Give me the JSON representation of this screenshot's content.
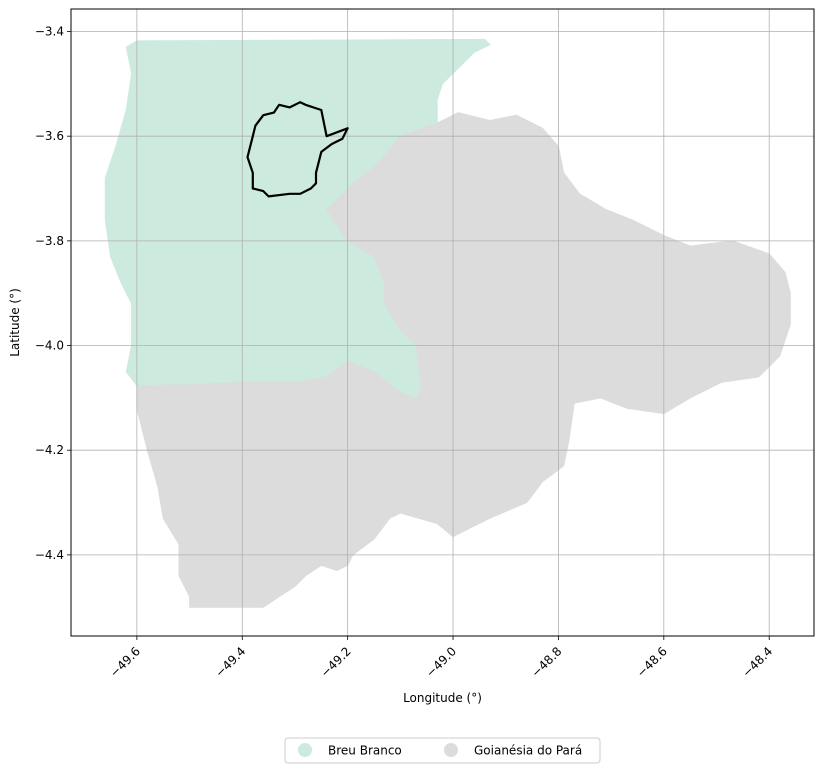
{
  "chart_data": {
    "type": "map",
    "xlabel": "Longitude (°)",
    "ylabel": "Latitude (°)",
    "xlim": [
      -49.725,
      -48.315
    ],
    "ylim": [
      -4.555,
      -3.357
    ],
    "x_ticks": [
      {
        "value": -49.6,
        "label": "−49.6"
      },
      {
        "value": -49.4,
        "label": "−49.4"
      },
      {
        "value": -49.2,
        "label": "−49.2"
      },
      {
        "value": -49.0,
        "label": "−49.0"
      },
      {
        "value": -48.8,
        "label": "−48.8"
      },
      {
        "value": -48.6,
        "label": "−48.6"
      },
      {
        "value": -48.4,
        "label": "−48.4"
      }
    ],
    "y_ticks": [
      {
        "value": -3.4,
        "label": "−3.4"
      },
      {
        "value": -3.6,
        "label": "−3.6"
      },
      {
        "value": -3.8,
        "label": "−3.8"
      },
      {
        "value": -4.0,
        "label": "−4.0"
      },
      {
        "value": -4.2,
        "label": "−4.2"
      },
      {
        "value": -4.4,
        "label": "−4.4"
      }
    ],
    "grid": true,
    "legend_position": "bottom-center",
    "series": [
      {
        "name": "Breu Branco",
        "color": "#cdeade",
        "outline": [
          [
            -49.6,
            -3.418
          ],
          [
            -48.94,
            -3.415
          ],
          [
            -48.93,
            -3.425
          ],
          [
            -48.96,
            -3.44
          ],
          [
            -49.0,
            -3.48
          ],
          [
            -49.02,
            -3.5
          ],
          [
            -49.03,
            -3.53
          ],
          [
            -49.03,
            -3.575
          ],
          [
            -49.1,
            -3.6
          ],
          [
            -49.14,
            -3.65
          ],
          [
            -49.2,
            -3.7
          ],
          [
            -49.24,
            -3.74
          ],
          [
            -49.22,
            -3.77
          ],
          [
            -49.2,
            -3.8
          ],
          [
            -49.15,
            -3.83
          ],
          [
            -49.13,
            -3.88
          ],
          [
            -49.13,
            -3.92
          ],
          [
            -49.1,
            -3.97
          ],
          [
            -49.07,
            -4.0
          ],
          [
            -49.06,
            -4.08
          ],
          [
            -49.07,
            -4.1
          ],
          [
            -49.1,
            -4.09
          ],
          [
            -49.15,
            -4.05
          ],
          [
            -49.2,
            -4.03
          ],
          [
            -49.24,
            -4.06
          ],
          [
            -49.3,
            -4.07
          ],
          [
            -49.4,
            -4.07
          ],
          [
            -49.5,
            -4.075
          ],
          [
            -49.6,
            -4.077
          ],
          [
            -49.62,
            -4.05
          ],
          [
            -49.61,
            -4.0
          ],
          [
            -49.61,
            -3.92
          ],
          [
            -49.63,
            -3.88
          ],
          [
            -49.65,
            -3.83
          ],
          [
            -49.66,
            -3.76
          ],
          [
            -49.66,
            -3.68
          ],
          [
            -49.64,
            -3.62
          ],
          [
            -49.62,
            -3.55
          ],
          [
            -49.61,
            -3.48
          ],
          [
            -49.62,
            -3.43
          ]
        ]
      },
      {
        "name": "Goianésia do Pará",
        "color": "#dcdcdc",
        "outline": [
          [
            -49.03,
            -3.575
          ],
          [
            -48.99,
            -3.555
          ],
          [
            -48.93,
            -3.57
          ],
          [
            -48.88,
            -3.56
          ],
          [
            -48.83,
            -3.585
          ],
          [
            -48.8,
            -3.62
          ],
          [
            -48.79,
            -3.67
          ],
          [
            -48.76,
            -3.71
          ],
          [
            -48.71,
            -3.74
          ],
          [
            -48.66,
            -3.76
          ],
          [
            -48.6,
            -3.79
          ],
          [
            -48.55,
            -3.81
          ],
          [
            -48.47,
            -3.8
          ],
          [
            -48.4,
            -3.825
          ],
          [
            -48.37,
            -3.86
          ],
          [
            -48.36,
            -3.9
          ],
          [
            -48.36,
            -3.96
          ],
          [
            -48.38,
            -4.02
          ],
          [
            -48.42,
            -4.06
          ],
          [
            -48.49,
            -4.07
          ],
          [
            -48.55,
            -4.1
          ],
          [
            -48.6,
            -4.13
          ],
          [
            -48.67,
            -4.12
          ],
          [
            -48.72,
            -4.1
          ],
          [
            -48.77,
            -4.11
          ],
          [
            -48.78,
            -4.18
          ],
          [
            -48.79,
            -4.23
          ],
          [
            -48.83,
            -4.26
          ],
          [
            -48.86,
            -4.3
          ],
          [
            -48.93,
            -4.33
          ],
          [
            -48.97,
            -4.35
          ],
          [
            -49.0,
            -4.365
          ],
          [
            -49.03,
            -4.34
          ],
          [
            -49.1,
            -4.32
          ],
          [
            -49.12,
            -4.33
          ],
          [
            -49.15,
            -4.37
          ],
          [
            -49.19,
            -4.4
          ],
          [
            -49.2,
            -4.42
          ],
          [
            -49.22,
            -4.43
          ],
          [
            -49.25,
            -4.42
          ],
          [
            -49.28,
            -4.44
          ],
          [
            -49.3,
            -4.46
          ],
          [
            -49.33,
            -4.48
          ],
          [
            -49.36,
            -4.5
          ],
          [
            -49.5,
            -4.5
          ],
          [
            -49.5,
            -4.48
          ],
          [
            -49.52,
            -4.44
          ],
          [
            -49.52,
            -4.38
          ],
          [
            -49.55,
            -4.33
          ],
          [
            -49.56,
            -4.27
          ],
          [
            -49.58,
            -4.2
          ],
          [
            -49.6,
            -4.12
          ],
          [
            -49.6,
            -4.077
          ],
          [
            -49.5,
            -4.075
          ],
          [
            -49.4,
            -4.07
          ],
          [
            -49.3,
            -4.07
          ],
          [
            -49.24,
            -4.06
          ],
          [
            -49.2,
            -4.03
          ],
          [
            -49.15,
            -4.05
          ],
          [
            -49.1,
            -4.09
          ],
          [
            -49.07,
            -4.1
          ],
          [
            -49.06,
            -4.08
          ],
          [
            -49.07,
            -4.0
          ],
          [
            -49.1,
            -3.97
          ],
          [
            -49.13,
            -3.92
          ],
          [
            -49.13,
            -3.88
          ],
          [
            -49.15,
            -3.83
          ],
          [
            -49.2,
            -3.8
          ],
          [
            -49.22,
            -3.77
          ],
          [
            -49.24,
            -3.74
          ],
          [
            -49.2,
            -3.7
          ],
          [
            -49.14,
            -3.65
          ],
          [
            -49.1,
            -3.6
          ]
        ]
      }
    ],
    "highlight_outline": {
      "color": "#000000",
      "points": [
        [
          -49.33,
          -3.54
        ],
        [
          -49.31,
          -3.545
        ],
        [
          -49.29,
          -3.535
        ],
        [
          -49.28,
          -3.54
        ],
        [
          -49.25,
          -3.55
        ],
        [
          -49.24,
          -3.6
        ],
        [
          -49.2,
          -3.585
        ],
        [
          -49.21,
          -3.605
        ],
        [
          -49.23,
          -3.615
        ],
        [
          -49.25,
          -3.63
        ],
        [
          -49.26,
          -3.67
        ],
        [
          -49.26,
          -3.69
        ],
        [
          -49.27,
          -3.7
        ],
        [
          -49.29,
          -3.71
        ],
        [
          -49.31,
          -3.71
        ],
        [
          -49.35,
          -3.715
        ],
        [
          -49.36,
          -3.705
        ],
        [
          -49.38,
          -3.7
        ],
        [
          -49.38,
          -3.67
        ],
        [
          -49.39,
          -3.64
        ],
        [
          -49.38,
          -3.6
        ],
        [
          -49.375,
          -3.58
        ],
        [
          -49.36,
          -3.56
        ],
        [
          -49.34,
          -3.555
        ]
      ]
    }
  },
  "legend": {
    "items": [
      {
        "label": "Breu Branco",
        "color": "#cdeade"
      },
      {
        "label": "Goianésia do Pará",
        "color": "#dcdcdc"
      }
    ]
  }
}
